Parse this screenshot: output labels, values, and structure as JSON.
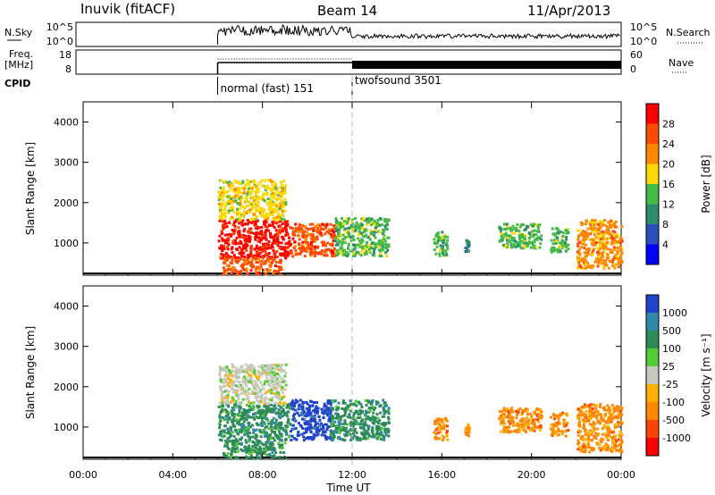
{
  "header": {
    "station": "Inuvik (fitACF)",
    "beam": "Beam 14",
    "date": "11/Apr/2013"
  },
  "summary": {
    "left_top_label": "N.Sky",
    "left_top_ticks": [
      "10^5",
      "10^0"
    ],
    "right_top_label": "N.Search",
    "right_top_ticks": [
      "10^5",
      "10^0"
    ],
    "left_freq_label": "Freq.",
    "left_freq_unit": "[MHz]",
    "freq_ticks": [
      "18",
      "8"
    ],
    "right_nave_label": "Nave",
    "nave_ticks": [
      "60",
      "0"
    ],
    "cpid_label": "CPID",
    "cpid_modes": [
      {
        "name": "normal (fast) 151",
        "start_hour": 6,
        "end_hour": 12
      },
      {
        "name": "twofsound 3501",
        "start_hour": 12,
        "end_hour": 24
      }
    ],
    "dashed_line_hour": 12
  },
  "chart_data": [
    {
      "type": "heatmap",
      "name": "power",
      "ylabel": "Slant Range [km]",
      "ylim": [
        200,
        4500
      ],
      "yticks": [
        "1000",
        "2000",
        "3000",
        "4000"
      ],
      "xlim": [
        0,
        24
      ],
      "colorbar_label": "Power [dB]",
      "colorbar_ticks": [
        "4",
        "8",
        "12",
        "16",
        "20",
        "24",
        "28"
      ],
      "colorbar_colors": [
        "#0000ff",
        "#2a4fb8",
        "#2e8b6e",
        "#44bb44",
        "#ffd800",
        "#ff8800",
        "#ff4a00",
        "#ff0000"
      ],
      "regions": [
        {
          "x0": 6.0,
          "x1": 9.2,
          "y0": 650,
          "y1": 1600,
          "c": 7
        },
        {
          "x0": 9.2,
          "x1": 11.2,
          "y0": 700,
          "y1": 1500,
          "c": 6
        },
        {
          "x0": 11.2,
          "x1": 13.6,
          "y0": 700,
          "y1": 1650,
          "c": 3
        },
        {
          "x0": 6.0,
          "x1": 9.0,
          "y0": 1600,
          "y1": 2600,
          "c": 4
        },
        {
          "x0": 6.2,
          "x1": 8.8,
          "y0": 250,
          "y1": 650,
          "c": 6
        },
        {
          "x0": 15.6,
          "x1": 16.2,
          "y0": 700,
          "y1": 1300,
          "c": 3
        },
        {
          "x0": 17.0,
          "x1": 17.2,
          "y0": 800,
          "y1": 1100,
          "c": 2
        },
        {
          "x0": 18.5,
          "x1": 20.4,
          "y0": 900,
          "y1": 1500,
          "c": 3
        },
        {
          "x0": 20.8,
          "x1": 21.6,
          "y0": 800,
          "y1": 1400,
          "c": 3
        },
        {
          "x0": 22.0,
          "x1": 24.0,
          "y0": 400,
          "y1": 1600,
          "c": 5
        }
      ]
    },
    {
      "type": "heatmap",
      "name": "velocity",
      "ylabel": "Slant Range [km]",
      "ylim": [
        200,
        4500
      ],
      "yticks": [
        "1000",
        "2000",
        "3000",
        "4000"
      ],
      "xlim": [
        0,
        24
      ],
      "xticks": [
        "00:00",
        "04:00",
        "08:00",
        "12:00",
        "16:00",
        "20:00",
        "00:00"
      ],
      "xlabel": "Time UT",
      "colorbar_label": "Velocity [m s⁻¹]",
      "colorbar_ticks": [
        "1000",
        "500",
        "100",
        "25",
        "-25",
        "-100",
        "-500",
        "-1000"
      ],
      "colorbar_colors": [
        "#2244cc",
        "#3388aa",
        "#2e8b57",
        "#55cc33",
        "#c8c8c0",
        "#ffb000",
        "#ff8800",
        "#ff4400",
        "#ff0000"
      ],
      "regions": [
        {
          "x0": 6.0,
          "x1": 9.2,
          "y0": 650,
          "y1": 1600,
          "c": 2
        },
        {
          "x0": 9.2,
          "x1": 11.0,
          "y0": 700,
          "y1": 1700,
          "c": 0
        },
        {
          "x0": 11.0,
          "x1": 13.6,
          "y0": 700,
          "y1": 1700,
          "c": 2
        },
        {
          "x0": 6.0,
          "x1": 9.0,
          "y0": 1600,
          "y1": 2600,
          "c": 4
        },
        {
          "x0": 6.2,
          "x1": 9.0,
          "y0": 250,
          "y1": 650,
          "c": 2
        },
        {
          "x0": 15.6,
          "x1": 16.2,
          "y0": 700,
          "y1": 1300,
          "c": 6
        },
        {
          "x0": 17.0,
          "x1": 17.2,
          "y0": 800,
          "y1": 1100,
          "c": 6
        },
        {
          "x0": 18.5,
          "x1": 20.4,
          "y0": 900,
          "y1": 1500,
          "c": 6
        },
        {
          "x0": 20.8,
          "x1": 21.6,
          "y0": 800,
          "y1": 1400,
          "c": 6
        },
        {
          "x0": 22.0,
          "x1": 24.0,
          "y0": 400,
          "y1": 1600,
          "c": 6
        }
      ]
    }
  ]
}
